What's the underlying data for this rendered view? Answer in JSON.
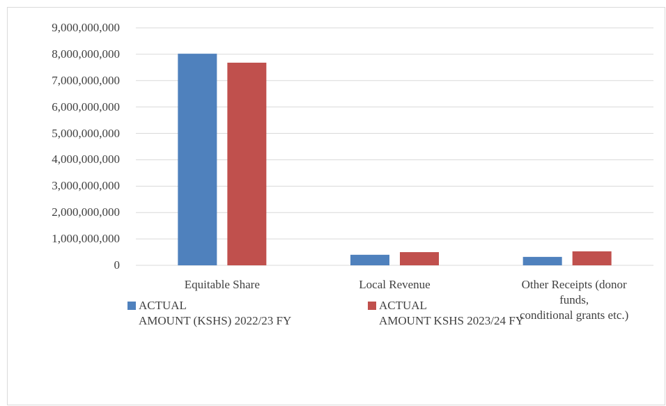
{
  "chart_data": {
    "type": "bar",
    "categories": [
      "Equitable Share",
      "Local Revenue",
      "Other Receipts (donor\nfunds,\nconditional grants etc.)"
    ],
    "series": [
      {
        "name": "ACTUAL\nAMOUNT (KSHS) 2022/23 FY",
        "color": "#4f81bd",
        "values": [
          8020000000,
          400000000,
          320000000
        ]
      },
      {
        "name": "ACTUAL\nAMOUNT KSHS 2023/24 FY",
        "color": "#c0504d",
        "values": [
          7680000000,
          500000000,
          530000000
        ]
      }
    ],
    "ylim": [
      0,
      9000000000
    ],
    "yticks": [
      0,
      {
        "value": 1000000000,
        "label": "1,000,000,000"
      },
      {
        "value": 2000000000,
        "label": "2,000,000,000"
      },
      {
        "value": 3000000000,
        "label": "3,000,000,000"
      },
      {
        "value": 4000000000,
        "label": "4,000,000,000"
      },
      {
        "value": 5000000000,
        "label": "5,000,000,000"
      },
      {
        "value": 6000000000,
        "label": "6,000,000,000"
      },
      {
        "value": 7000000000,
        "label": "7,000,000,000"
      },
      {
        "value": 8000000000,
        "label": "8,000,000,000"
      },
      {
        "value": 9000000000,
        "label": "9,000,000,000"
      }
    ],
    "grid": true,
    "legend": "bottom"
  }
}
